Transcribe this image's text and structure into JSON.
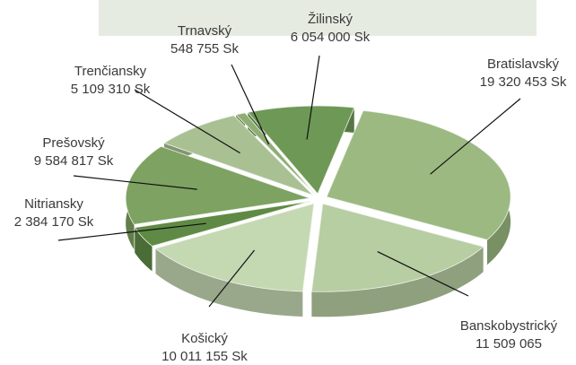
{
  "chart_data": {
    "type": "pie",
    "categories": [
      "Bratislavský",
      "Banskobystrický",
      "Košický",
      "Nitriansky",
      "Prešovský",
      "Trenčiansky",
      "Trnavský",
      "Žilinský"
    ],
    "values": [
      19320453,
      11509065,
      10011155,
      2384170,
      9584817,
      5109310,
      548755,
      6054000
    ],
    "value_labels": [
      "19 320 453 Sk",
      "11 509 065",
      "10 011 155 Sk",
      "2 384 170 Sk",
      "9 584 817 Sk",
      "5 109 310 Sk",
      "548 755 Sk",
      "6 054 000 Sk"
    ],
    "colors": [
      "#9bb981",
      "#b7cda2",
      "#c4d8b2",
      "#5f8a45",
      "#7da262",
      "#a9c093",
      "#8fae74",
      "#6e9856"
    ]
  }
}
